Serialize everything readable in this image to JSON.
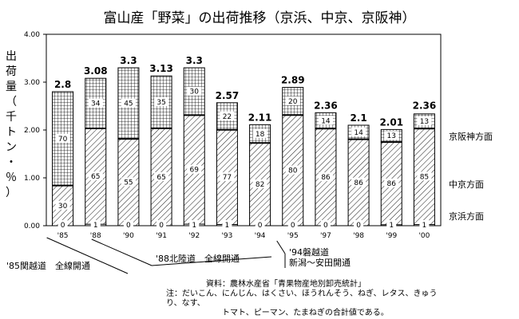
{
  "chart_data": {
    "type": "bar",
    "title": "富山産「野菜」の出荷推移（京浜、中京、京阪神）",
    "ylabel": "出荷量（千トン・％）",
    "ylim": [
      0,
      4
    ],
    "yticks": [
      "0.00",
      "1.00",
      "2.00",
      "3.00",
      "4.00"
    ],
    "categories": [
      "'85",
      "'88",
      "'90",
      "'91",
      "'92",
      "'93",
      "'94",
      "'95",
      "'97",
      "'98",
      "'99",
      "'00"
    ],
    "totals": [
      2.8,
      3.08,
      3.3,
      3.13,
      3.3,
      2.57,
      2.11,
      2.89,
      2.36,
      2.1,
      2.01,
      2.36
    ],
    "total_labels": [
      "2.8",
      "3.08",
      "3.3",
      "3.13",
      "3.3",
      "2.57",
      "2.11",
      "2.89",
      "2.36",
      "2.1",
      "2.01",
      "2.36"
    ],
    "series": [
      {
        "name": "京浜方面",
        "percent": [
          0,
          1,
          0,
          0,
          1,
          1,
          0,
          0,
          0,
          0,
          1,
          1
        ]
      },
      {
        "name": "中京方面",
        "percent": [
          30,
          65,
          55,
          65,
          69,
          77,
          82,
          80,
          86,
          86,
          86,
          85
        ]
      },
      {
        "name": "京阪神方面",
        "percent": [
          70,
          34,
          45,
          35,
          30,
          22,
          18,
          20,
          14,
          14,
          13,
          13
        ]
      }
    ],
    "segment_labels": [
      [
        "0",
        "30",
        "70"
      ],
      [
        "1",
        "65",
        "34"
      ],
      [
        "0",
        "55",
        "45"
      ],
      [
        "0",
        "65",
        "35"
      ],
      [
        "1",
        "69",
        "30"
      ],
      [
        "1",
        "77",
        "22"
      ],
      [
        "0",
        "82",
        "18"
      ],
      [
        "0",
        "80",
        "20"
      ],
      [
        "0",
        "86",
        "14"
      ],
      [
        "0",
        "86",
        "14"
      ],
      [
        "1",
        "86",
        "13"
      ],
      [
        "1",
        "85",
        "13"
      ]
    ],
    "legend_labels": [
      "京阪神方面",
      "中京方面",
      "京浜方面"
    ]
  },
  "annotations": {
    "event_85": "'85関越道　全線開通",
    "event_88": "'88北陸道　全線開通",
    "event_94_line1": "'94磐越道",
    "event_94_line2": "新潟～安田開通"
  },
  "source": {
    "line1": "資料：農林水産省「青果物産地別卸売統計」",
    "line2": "注：だいこん、にんじん、はくさい、ほうれんそう、ねぎ、レタス、きゅうり、なす、",
    "line3": "トマト、ピーマン、たまねぎの合計値である。"
  }
}
